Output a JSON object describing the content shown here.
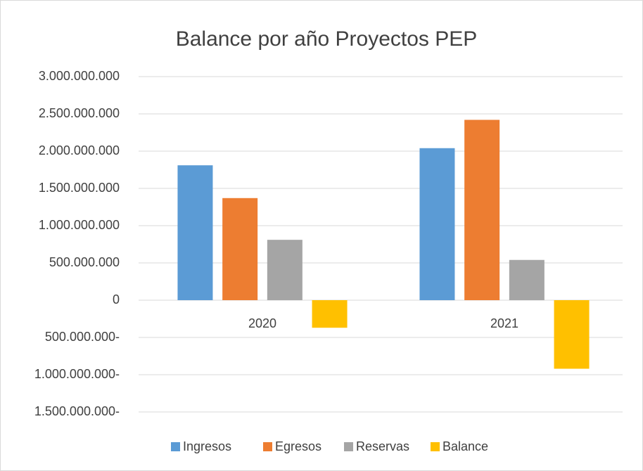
{
  "chart_data": {
    "type": "bar",
    "title": "Balance por año Proyectos PEP",
    "categories": [
      "2020",
      "2021"
    ],
    "series": [
      {
        "name": "Ingresos",
        "color": "#5b9bd5",
        "values": [
          1810000000,
          2040000000
        ]
      },
      {
        "name": "Egresos",
        "color": "#ed7d31",
        "values": [
          1370000000,
          2420000000
        ]
      },
      {
        "name": "Reservas",
        "color": "#a5a5a5",
        "values": [
          810000000,
          540000000
        ]
      },
      {
        "name": "Balance",
        "color": "#ffc000",
        "values": [
          -370000000,
          -920000000
        ]
      }
    ],
    "ylim": [
      -1500000000,
      3000000000
    ],
    "yticks": [
      {
        "value": 3000000000,
        "label": "3.000.000.000"
      },
      {
        "value": 2500000000,
        "label": "2.500.000.000"
      },
      {
        "value": 2000000000,
        "label": "2.000.000.000"
      },
      {
        "value": 1500000000,
        "label": "1.500.000.000"
      },
      {
        "value": 1000000000,
        "label": "1.000.000.000"
      },
      {
        "value": 500000000,
        "label": "500.000.000"
      },
      0,
      {
        "value": -500000000,
        "label": "500.000.000-"
      },
      {
        "value": -1000000000,
        "label": "1.000.000.000-"
      },
      {
        "value": -1500000000,
        "label": "1.500.000.000-"
      }
    ],
    "grid": true,
    "legend": "bottom"
  }
}
